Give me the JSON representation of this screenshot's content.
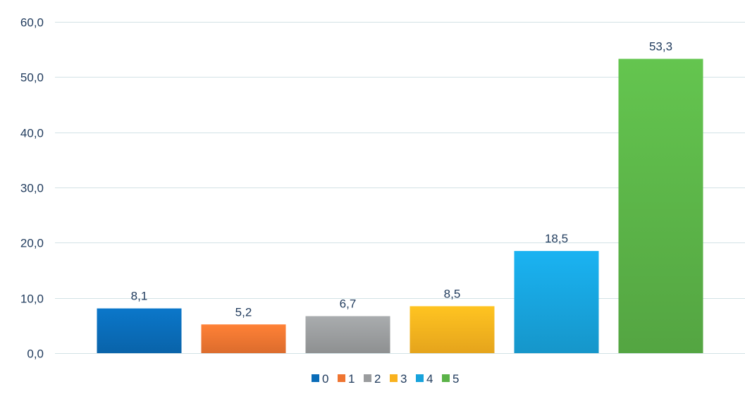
{
  "chart_data": {
    "type": "bar",
    "categories": [
      "0",
      "1",
      "2",
      "3",
      "4",
      "5"
    ],
    "values": [
      8.1,
      5.2,
      6.7,
      8.5,
      18.5,
      53.3
    ],
    "value_labels": [
      "8,1",
      "5,2",
      "6,7",
      "8,5",
      "18,5",
      "53,3"
    ],
    "colors": [
      "#0a6cb8",
      "#ef7531",
      "#9a9c9e",
      "#f9b21e",
      "#18a3dc",
      "#5bb348"
    ],
    "ylim": [
      0,
      60
    ],
    "yticks": [
      0,
      10,
      20,
      30,
      40,
      50,
      60
    ],
    "ytick_labels": [
      "0,0",
      "10,0",
      "20,0",
      "30,0",
      "40,0",
      "50,0",
      "60,0"
    ],
    "title": "",
    "xlabel": "",
    "ylabel": "",
    "grid": true,
    "legend": {
      "position": "bottom-center",
      "entries": [
        "0",
        "1",
        "2",
        "3",
        "4",
        "5"
      ]
    }
  }
}
